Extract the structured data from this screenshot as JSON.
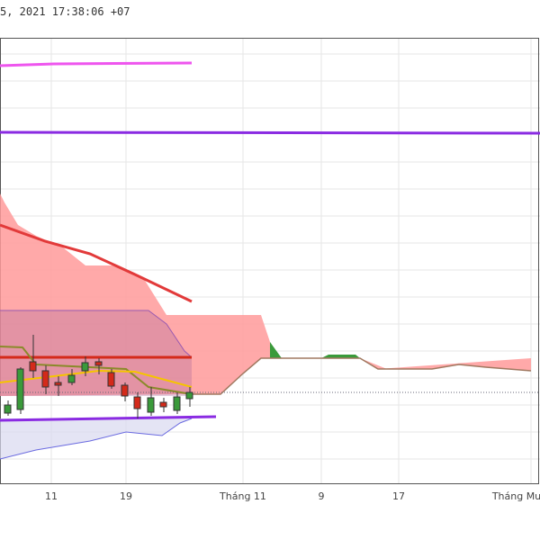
{
  "header": {
    "timestamp": "5, 2021 17:38:06 +07"
  },
  "x_axis": {
    "labels": [
      "11",
      "19",
      "Tháng 11",
      "9",
      "17",
      "Tháng Mư"
    ]
  }
}
